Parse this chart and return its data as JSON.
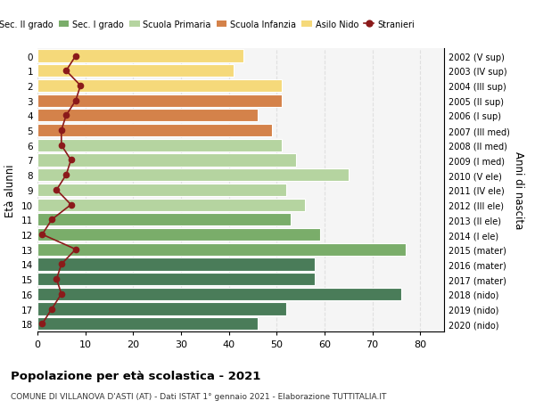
{
  "ages": [
    18,
    17,
    16,
    15,
    14,
    13,
    12,
    11,
    10,
    9,
    8,
    7,
    6,
    5,
    4,
    3,
    2,
    1,
    0
  ],
  "years": [
    "2002 (V sup)",
    "2003 (IV sup)",
    "2004 (III sup)",
    "2005 (II sup)",
    "2006 (I sup)",
    "2007 (III med)",
    "2008 (II med)",
    "2009 (I med)",
    "2010 (V ele)",
    "2011 (IV ele)",
    "2012 (III ele)",
    "2013 (II ele)",
    "2014 (I ele)",
    "2015 (mater)",
    "2016 (mater)",
    "2017 (mater)",
    "2018 (nido)",
    "2019 (nido)",
    "2020 (nido)"
  ],
  "bar_values": [
    46,
    52,
    76,
    58,
    58,
    77,
    59,
    53,
    56,
    52,
    65,
    54,
    51,
    49,
    46,
    51,
    51,
    41,
    43
  ],
  "stranieri": [
    1,
    3,
    5,
    4,
    5,
    8,
    1,
    3,
    7,
    4,
    6,
    7,
    5,
    5,
    6,
    8,
    9,
    6,
    8
  ],
  "bar_colors": [
    "#4a7c59",
    "#4a7c59",
    "#4a7c59",
    "#4a7c59",
    "#4a7c59",
    "#7aad6a",
    "#7aad6a",
    "#7aad6a",
    "#b5d4a0",
    "#b5d4a0",
    "#b5d4a0",
    "#b5d4a0",
    "#b5d4a0",
    "#d4824a",
    "#d4824a",
    "#d4824a",
    "#f5d97a",
    "#f5d97a",
    "#f5d97a"
  ],
  "legend_labels": [
    "Sec. II grado",
    "Sec. I grado",
    "Scuola Primaria",
    "Scuola Infanzia",
    "Asilo Nido",
    "Stranieri"
  ],
  "legend_colors": [
    "#4a7c59",
    "#7aad6a",
    "#b5d4a0",
    "#d4824a",
    "#f5d97a",
    "#8b1a1a"
  ],
  "stranieri_color": "#8b1a1a",
  "ylabel": "Età alunni",
  "ylabel_right": "Anni di nascita",
  "title": "Popolazione per età scolastica - 2021",
  "subtitle": "COMUNE DI VILLANOVA D'ASTI (AT) - Dati ISTAT 1° gennaio 2021 - Elaborazione TUTTITALIA.IT",
  "xlim": [
    0,
    85
  ],
  "xticks": [
    0,
    10,
    20,
    30,
    40,
    50,
    60,
    70,
    80
  ],
  "bg_color": "#ffffff",
  "plot_bg_color": "#f5f5f5"
}
